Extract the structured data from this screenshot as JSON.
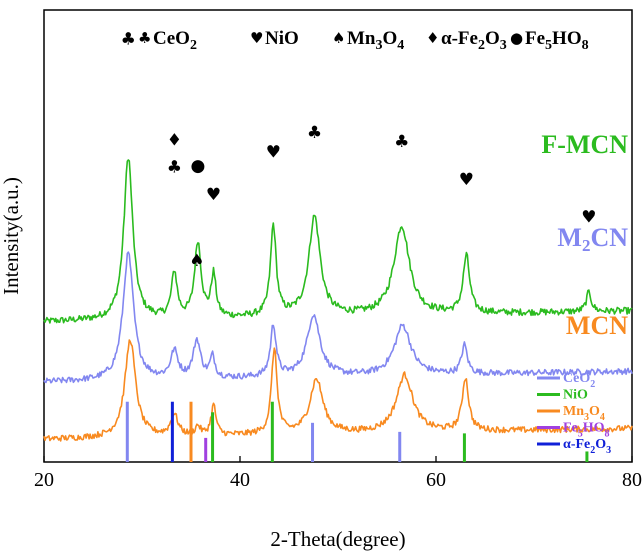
{
  "chart_data": {
    "type": "line",
    "title": "",
    "xlabel": "2-Theta(degree)",
    "ylabel": "Intensity(a.u.)",
    "xlim": [
      20,
      80
    ],
    "x_ticks": [
      20,
      40,
      60,
      80
    ],
    "x_tick_labels": [
      "20",
      "40",
      "60",
      "80"
    ],
    "y_ticks_shown": false,
    "series": [
      {
        "name": "F-MCN",
        "color": "#2bbb1f",
        "baseline": 9.3,
        "noise": 0.22,
        "peaks": [
          {
            "x": 28.6,
            "h": 10.8,
            "w": 0.55
          },
          {
            "x": 33.3,
            "h": 3.0,
            "w": 0.35
          },
          {
            "x": 35.7,
            "h": 5.0,
            "w": 0.4
          },
          {
            "x": 37.3,
            "h": 2.8,
            "w": 0.3
          },
          {
            "x": 43.4,
            "h": 6.0,
            "w": 0.35
          },
          {
            "x": 47.6,
            "h": 6.6,
            "w": 0.7
          },
          {
            "x": 56.5,
            "h": 5.9,
            "w": 0.95
          },
          {
            "x": 63.1,
            "h": 3.8,
            "w": 0.4
          },
          {
            "x": 75.6,
            "h": 1.3,
            "w": 0.3
          }
        ]
      },
      {
        "name": "M2CN",
        "color": "#8287f0",
        "baseline": 5.3,
        "noise": 0.2,
        "peaks": [
          {
            "x": 28.6,
            "h": 8.4,
            "w": 0.65
          },
          {
            "x": 33.3,
            "h": 1.8,
            "w": 0.45
          },
          {
            "x": 35.6,
            "h": 2.5,
            "w": 0.45
          },
          {
            "x": 37.2,
            "h": 1.4,
            "w": 0.3
          },
          {
            "x": 43.4,
            "h": 3.4,
            "w": 0.35
          },
          {
            "x": 47.5,
            "h": 4.1,
            "w": 0.8
          },
          {
            "x": 56.6,
            "h": 3.3,
            "w": 1.0
          },
          {
            "x": 62.9,
            "h": 1.9,
            "w": 0.35
          }
        ]
      },
      {
        "name": "MCN",
        "color": "#f88a20",
        "baseline": 1.5,
        "noise": 0.2,
        "peaks": [
          {
            "x": 28.8,
            "h": 6.5,
            "w": 0.65
          },
          {
            "x": 33.3,
            "h": 1.4,
            "w": 0.45
          },
          {
            "x": 35.7,
            "h": 0.6,
            "w": 0.3
          },
          {
            "x": 37.3,
            "h": 2.0,
            "w": 0.3
          },
          {
            "x": 43.5,
            "h": 5.6,
            "w": 0.35
          },
          {
            "x": 47.8,
            "h": 3.6,
            "w": 0.8
          },
          {
            "x": 56.8,
            "h": 3.8,
            "w": 1.0
          },
          {
            "x": 63.0,
            "h": 3.5,
            "w": 0.4
          }
        ]
      }
    ],
    "series_labels": [
      {
        "text": "F-MCN",
        "color": "#2bbb1f"
      },
      {
        "text": "M",
        "sub": "2",
        "after": "CN",
        "color": "#8287f0"
      },
      {
        "text": "MCN",
        "color": "#f88a20"
      }
    ],
    "top_legend": [
      {
        "symbol": "♣",
        "label": "CeO",
        "sub": "2"
      },
      {
        "symbol": "♥",
        "label": "NiO"
      },
      {
        "symbol": "♠",
        "label": "Mn",
        "sub": "3",
        "label2": "O",
        "sub2": "4"
      },
      {
        "symbol": "♦",
        "label": "α-Fe",
        "sub": "2",
        "label2": "O",
        "sub2": "3"
      },
      {
        "symbol": "●",
        "label": "Fe",
        "sub": "5",
        "label2": "HO",
        "sub2": "8"
      }
    ],
    "peak_markers": [
      {
        "x": 28.6,
        "y": 27.7,
        "symbol": "♣"
      },
      {
        "x": 33.3,
        "y": 21.0,
        "symbol": "♦"
      },
      {
        "x": 33.3,
        "y": 19.2,
        "symbol": "♣"
      },
      {
        "x": 35.7,
        "y": 19.3,
        "symbol": "●"
      },
      {
        "x": 37.3,
        "y": 17.4,
        "symbol": "♥"
      },
      {
        "x": 43.4,
        "y": 20.2,
        "symbol": "♥"
      },
      {
        "x": 47.6,
        "y": 21.5,
        "symbol": "♣"
      },
      {
        "x": 56.5,
        "y": 20.9,
        "symbol": "♣"
      },
      {
        "x": 63.1,
        "y": 18.4,
        "symbol": "♥"
      },
      {
        "x": 75.6,
        "y": 15.9,
        "symbol": "♥"
      },
      {
        "x": 35.6,
        "y": 13.0,
        "symbol": "♠"
      }
    ],
    "reference_lines": [
      {
        "x": 28.5,
        "h": 4.0,
        "color": "#8287f0"
      },
      {
        "x": 33.1,
        "h": 4.0,
        "color": "#1020d8"
      },
      {
        "x": 35.0,
        "h": 4.0,
        "color": "#f88a20"
      },
      {
        "x": 36.5,
        "h": 1.6,
        "color": "#a040e0"
      },
      {
        "x": 37.2,
        "h": 3.3,
        "color": "#2bbb1f"
      },
      {
        "x": 43.3,
        "h": 4.0,
        "color": "#2bbb1f"
      },
      {
        "x": 47.4,
        "h": 2.6,
        "color": "#8287f0"
      },
      {
        "x": 56.3,
        "h": 2.0,
        "color": "#8287f0"
      },
      {
        "x": 62.9,
        "h": 1.9,
        "color": "#2bbb1f"
      },
      {
        "x": 75.4,
        "h": 0.7,
        "color": "#2bbb1f"
      }
    ],
    "reference_legend": [
      {
        "label": "CeO",
        "sub": "2",
        "color": "#8287f0"
      },
      {
        "label": "NiO",
        "color": "#2bbb1f"
      },
      {
        "label": "Mn",
        "sub": "3",
        "label2": "O",
        "sub2": "4",
        "color": "#f88a20"
      },
      {
        "label": "Fe",
        "sub": "5",
        "label2": "HO",
        "sub2": "8",
        "color": "#a040e0"
      },
      {
        "label": "α-Fe",
        "sub": "2",
        "label2": "O",
        "sub2": "3",
        "color": "#1020d8"
      }
    ]
  }
}
